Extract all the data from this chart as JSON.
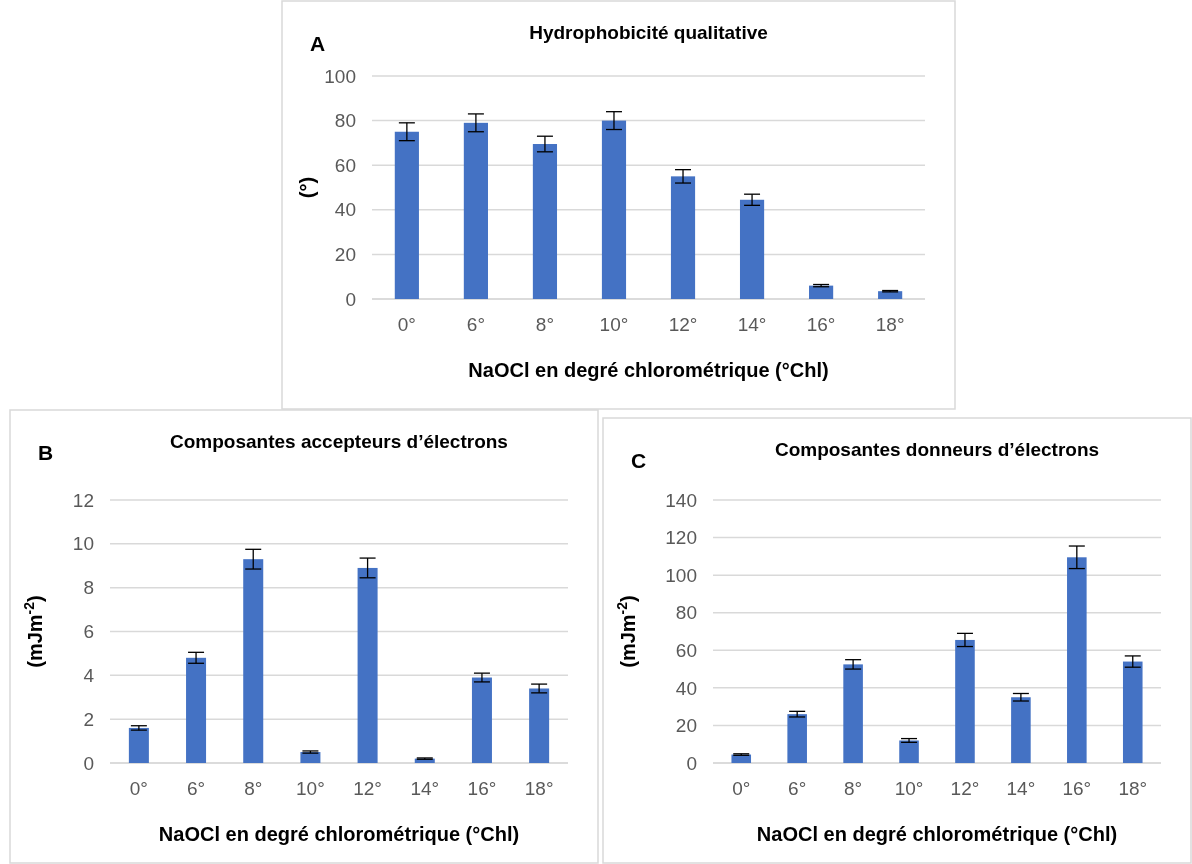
{
  "chart_data": [
    {
      "type": "bar",
      "title": "Hydrophobicité qualitative",
      "annotations": [
        "A"
      ],
      "xlabel": "NaOCl en degré chlorométrique (°Chl)",
      "ylabel": "(°)",
      "categories": [
        "0°",
        "6°",
        "8°",
        "10°",
        "12°",
        "14°",
        "16°",
        "18°"
      ],
      "values": [
        75,
        79,
        69.5,
        80,
        55,
        44.5,
        6,
        3.5
      ],
      "errors": [
        4,
        4,
        3.5,
        4,
        3,
        2.5,
        0.5,
        0.3
      ],
      "color": "#4472c4",
      "ylim": [
        0,
        100
      ],
      "yticks": [
        0,
        20,
        40,
        60,
        80,
        100
      ],
      "grid": "y"
    },
    {
      "type": "bar",
      "title": "Composantes accepteurs d’électrons",
      "annotations": [
        "B"
      ],
      "xlabel": "NaOCl en degré chlorométrique (°Chl)",
      "ylabel": "(mJm$^{-2}$)",
      "categories": [
        "0°",
        "6°",
        "8°",
        "10°",
        "12°",
        "14°",
        "16°",
        "18°"
      ],
      "values": [
        1.6,
        4.8,
        9.3,
        0.5,
        8.9,
        0.2,
        3.9,
        3.4
      ],
      "errors": [
        0.1,
        0.25,
        0.45,
        0.05,
        0.45,
        0.03,
        0.2,
        0.2
      ],
      "color": "#4472c4",
      "ylim": [
        0,
        12
      ],
      "yticks": [
        0,
        2,
        4,
        6,
        8,
        10,
        12
      ],
      "grid": "y"
    },
    {
      "type": "bar",
      "title": "Composantes donneurs d’électrons",
      "annotations": [
        "C"
      ],
      "xlabel": "NaOCl en degré chlorométrique (°Chl)",
      "ylabel": "(mJm$^{-2}$)",
      "categories": [
        "0°",
        "6°",
        "8°",
        "10°",
        "12°",
        "14°",
        "16°",
        "18°"
      ],
      "values": [
        4.5,
        26,
        52.5,
        12,
        65.5,
        35,
        109.5,
        54
      ],
      "errors": [
        0.4,
        1.5,
        2.5,
        1,
        3.5,
        2,
        6,
        3
      ],
      "color": "#4472c4",
      "ylim": [
        0,
        140
      ],
      "yticks": [
        0,
        20,
        40,
        60,
        80,
        100,
        120,
        140
      ],
      "grid": "y"
    }
  ]
}
